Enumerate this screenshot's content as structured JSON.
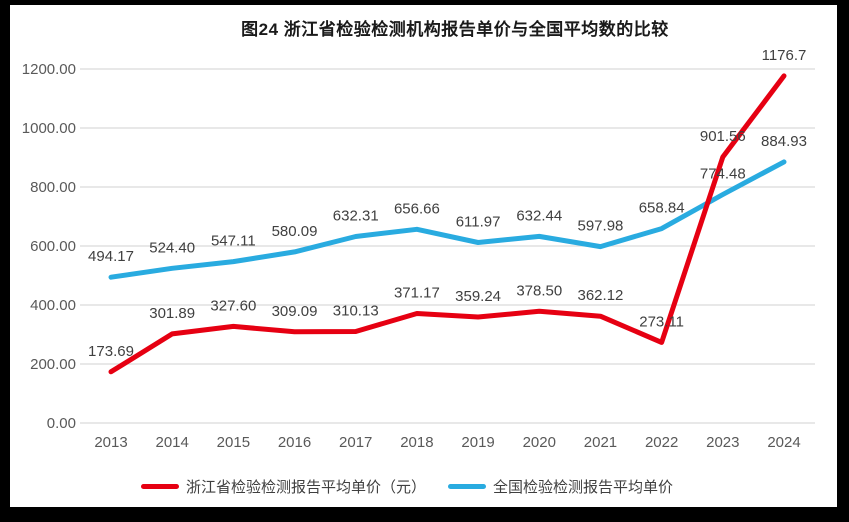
{
  "chart_data": {
    "type": "line",
    "title": "图24  浙江省检验检测机构报告单价与全国平均数的比较",
    "categories": [
      "2013",
      "2014",
      "2015",
      "2016",
      "2017",
      "2018",
      "2019",
      "2020",
      "2021",
      "2022",
      "2023",
      "2024"
    ],
    "series": [
      {
        "name": "浙江省检验检测报告平均单价（元）",
        "color": "#e60012",
        "values": [
          173.69,
          301.89,
          327.6,
          309.09,
          310.13,
          371.17,
          359.24,
          378.5,
          362.12,
          273.11,
          901.56,
          1176.7
        ],
        "labels": [
          "173.69",
          "301.89",
          "327.60",
          "309.09",
          "310.13",
          "371.17",
          "359.24",
          "378.50",
          "362.12",
          "273.11",
          "901.56",
          "1176.7"
        ]
      },
      {
        "name": "全国检验检测报告平均单价",
        "color": "#29abe0",
        "values": [
          494.17,
          524.4,
          547.11,
          580.09,
          632.31,
          656.66,
          611.97,
          632.44,
          597.98,
          658.84,
          774.48,
          884.93
        ],
        "labels": [
          "494.17",
          "524.40",
          "547.11",
          "580.09",
          "632.31",
          "656.66",
          "611.97",
          "632.44",
          "597.98",
          "658.84",
          "774.48",
          "884.93"
        ]
      }
    ],
    "ylim": [
      0,
      1200
    ],
    "ytick_step": 200,
    "ytick_labels": [
      "0.00",
      "200.00",
      "400.00",
      "600.00",
      "800.00",
      "1000.00",
      "1200.00"
    ],
    "xlabel": "",
    "ylabel": "",
    "grid": true,
    "legend_position": "bottom",
    "colors": {
      "grid": "#d9d9d9",
      "axis_text": "#595959",
      "label_text": "#404040",
      "title_text": "#1a1a1a",
      "plot_background": "#ffffff",
      "frame_background": "#000000"
    }
  }
}
